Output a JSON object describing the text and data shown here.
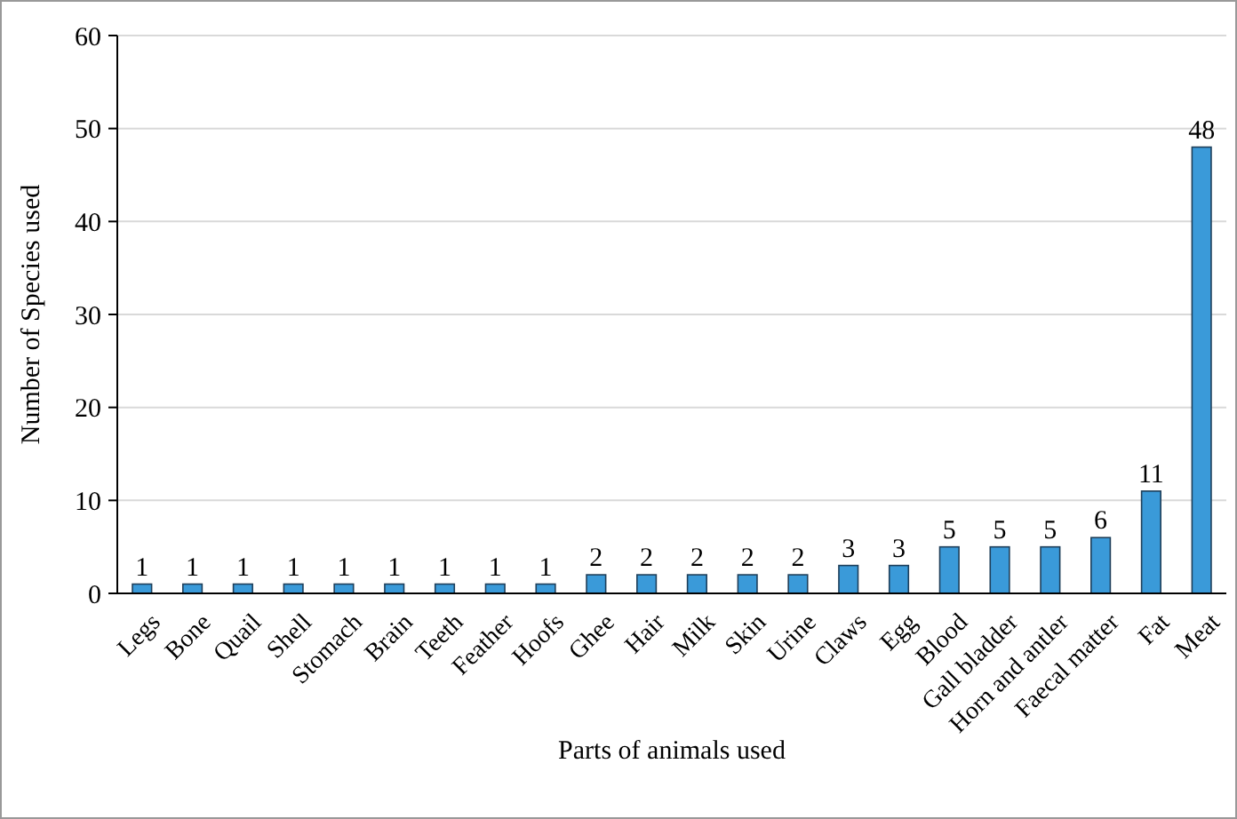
{
  "chart_data": {
    "type": "bar",
    "xlabel": "Parts of animals used",
    "ylabel": "Number of Species used",
    "categories": [
      "Legs",
      "Bone",
      "Quail",
      "Shell",
      "Stomach",
      "Brain",
      "Teeth",
      "Feather",
      "Hoofs",
      "Ghee",
      "Hair",
      "Milk",
      "Skin",
      "Urine",
      "Claws",
      "Egg",
      "Blood",
      "Gall bladder",
      "Horn and antler",
      "Faecal matter",
      "Fat",
      "Meat"
    ],
    "values": [
      1,
      1,
      1,
      1,
      1,
      1,
      1,
      1,
      1,
      2,
      2,
      2,
      2,
      2,
      3,
      3,
      5,
      5,
      5,
      6,
      11,
      48
    ],
    "color": "#3a9ad9",
    "ylim": [
      0,
      60
    ],
    "yticks": [
      0,
      10,
      20,
      30,
      40,
      50,
      60
    ],
    "grid": "y",
    "data_labels": true
  }
}
